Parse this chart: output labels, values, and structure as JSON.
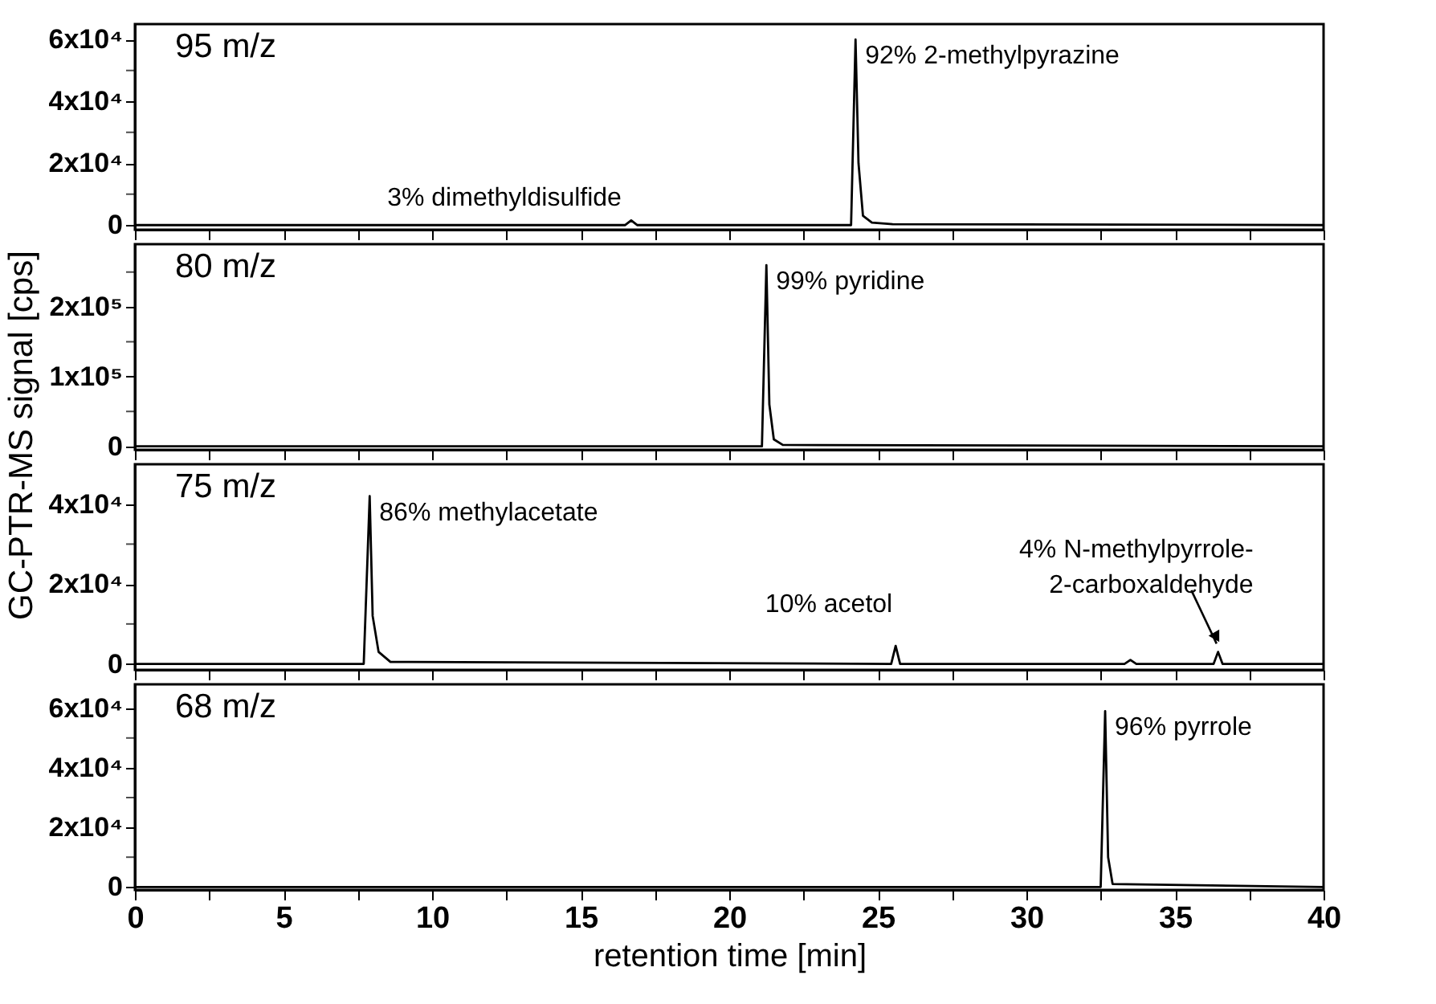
{
  "chart_data": [
    {
      "type": "line",
      "ylabel": "GC-PTR-MS signal [cps]",
      "xlim": [
        0,
        40
      ],
      "ylim": [
        -1500,
        65000
      ],
      "tick_labels": "y",
      "grid": false,
      "legend": "top left",
      "xticks": [
        0,
        {
          "value": 2.5,
          "label": null
        },
        5,
        {
          "value": 7.5,
          "label": null
        },
        10,
        {
          "value": 12.5,
          "label": null
        },
        15,
        {
          "value": 17.5,
          "label": null
        },
        20,
        {
          "value": 22.5,
          "label": null
        },
        25,
        {
          "value": 27.5,
          "label": null
        },
        30,
        {
          "value": 32.5,
          "label": null
        },
        35,
        {
          "value": 37.5,
          "label": null
        },
        40
      ],
      "yticks": [
        0,
        {
          "value": 10000,
          "label": null
        },
        {
          "value": 20000,
          "label": "2x10⁴"
        },
        {
          "value": 30000,
          "label": null
        },
        {
          "value": 40000,
          "label": "4x10⁴"
        },
        {
          "value": 50000,
          "label": null
        },
        {
          "value": 60000,
          "label": "6x10⁴"
        }
      ],
      "series": [
        {
          "name": "95 m/z",
          "color": "#000000",
          "x": [
            0,
            16.5,
            16.7,
            16.9,
            24.1,
            24.25,
            24.35,
            24.5,
            24.8,
            25.5,
            40
          ],
          "values": [
            0,
            0,
            1500,
            0,
            0,
            60000,
            20000,
            3000,
            800,
            300,
            0
          ]
        }
      ],
      "annotations": [
        {
          "text": "3% dimethyldisulfide",
          "x": 16.7,
          "y": 1500
        },
        {
          "text": "92% 2-methylpyrazine",
          "x": 24.25,
          "y": 60000
        }
      ]
    },
    {
      "type": "line",
      "xlim": [
        0,
        40
      ],
      "ylim": [
        -5000,
        290000
      ],
      "tick_labels": "y",
      "grid": false,
      "legend": "top left",
      "xticks": [
        0,
        {
          "value": 2.5,
          "label": null
        },
        5,
        {
          "value": 7.5,
          "label": null
        },
        10,
        {
          "value": 12.5,
          "label": null
        },
        15,
        {
          "value": 17.5,
          "label": null
        },
        20,
        {
          "value": 22.5,
          "label": null
        },
        25,
        {
          "value": 27.5,
          "label": null
        },
        30,
        {
          "value": 32.5,
          "label": null
        },
        35,
        {
          "value": 37.5,
          "label": null
        },
        40
      ],
      "yticks": [
        0,
        {
          "value": 50000,
          "label": null
        },
        {
          "value": 100000,
          "label": "1x10⁵"
        },
        {
          "value": 150000,
          "label": null
        },
        {
          "value": 200000,
          "label": "2x10⁵"
        },
        {
          "value": 250000,
          "label": null
        }
      ],
      "series": [
        {
          "name": "80 m/z",
          "color": "#000000",
          "x": [
            0,
            21.1,
            21.25,
            21.35,
            21.5,
            21.8,
            40
          ],
          "values": [
            0,
            0,
            260000,
            60000,
            10000,
            2000,
            0
          ]
        }
      ],
      "annotations": [
        {
          "text": "99% pyridine",
          "x": 21.25,
          "y": 260000
        }
      ]
    },
    {
      "type": "line",
      "xlim": [
        0,
        40
      ],
      "ylim": [
        -1500,
        50000
      ],
      "tick_labels": "y",
      "grid": false,
      "legend": "top left",
      "xticks": [
        0,
        {
          "value": 2.5,
          "label": null
        },
        5,
        {
          "value": 7.5,
          "label": null
        },
        10,
        {
          "value": 12.5,
          "label": null
        },
        15,
        {
          "value": 17.5,
          "label": null
        },
        20,
        {
          "value": 22.5,
          "label": null
        },
        25,
        {
          "value": 27.5,
          "label": null
        },
        30,
        {
          "value": 32.5,
          "label": null
        },
        35,
        {
          "value": 37.5,
          "label": null
        },
        40
      ],
      "yticks": [
        0,
        {
          "value": 10000,
          "label": null
        },
        {
          "value": 20000,
          "label": "2x10⁴"
        },
        {
          "value": 30000,
          "label": null
        },
        {
          "value": 40000,
          "label": "4x10⁴"
        }
      ],
      "series": [
        {
          "name": "75 m/z",
          "color": "#000000",
          "x": [
            0,
            7.7,
            7.9,
            8.0,
            8.2,
            8.6,
            25.45,
            25.6,
            25.75,
            33.3,
            33.5,
            33.7,
            36.3,
            36.45,
            36.6,
            40
          ],
          "values": [
            0,
            0,
            42000,
            12000,
            3000,
            500,
            0,
            4500,
            0,
            0,
            1000,
            0,
            0,
            3000,
            0,
            0
          ]
        }
      ],
      "annotations": [
        {
          "text": "86% methylacetate",
          "x": 7.9,
          "y": 42000
        },
        {
          "text": "10% acetol",
          "x": 25.6,
          "y": 4500
        },
        {
          "text": "4% N-methylpyrrole-\n2-carboxaldehyde",
          "x": 36.45,
          "y": 3000
        }
      ]
    },
    {
      "type": "line",
      "xlabel": "retention time [min]",
      "xlim": [
        0,
        40
      ],
      "ylim": [
        -1000,
        68000
      ],
      "grid": false,
      "legend": "top left",
      "xticks": [
        0,
        {
          "value": 2.5,
          "label": null
        },
        5,
        {
          "value": 7.5,
          "label": null
        },
        10,
        {
          "value": 12.5,
          "label": null
        },
        15,
        {
          "value": 17.5,
          "label": null
        },
        20,
        {
          "value": 22.5,
          "label": null
        },
        25,
        {
          "value": 27.5,
          "label": null
        },
        30,
        {
          "value": 32.5,
          "label": null
        },
        35,
        {
          "value": 37.5,
          "label": null
        },
        40
      ],
      "yticks": [
        0,
        {
          "value": 10000,
          "label": null
        },
        {
          "value": 20000,
          "label": "2x10⁴"
        },
        {
          "value": 30000,
          "label": null
        },
        {
          "value": 40000,
          "label": "4x10⁴"
        },
        {
          "value": 50000,
          "label": null
        },
        {
          "value": 60000,
          "label": "6x10⁴"
        }
      ],
      "series": [
        {
          "name": "68 m/z",
          "color": "#000000",
          "x": [
            0,
            32.5,
            32.65,
            32.75,
            32.9,
            40
          ],
          "values": [
            0,
            0,
            59000,
            10000,
            1000,
            0
          ]
        }
      ],
      "annotations": [
        {
          "text": "96% pyrrole",
          "x": 32.65,
          "y": 59000
        }
      ]
    }
  ]
}
